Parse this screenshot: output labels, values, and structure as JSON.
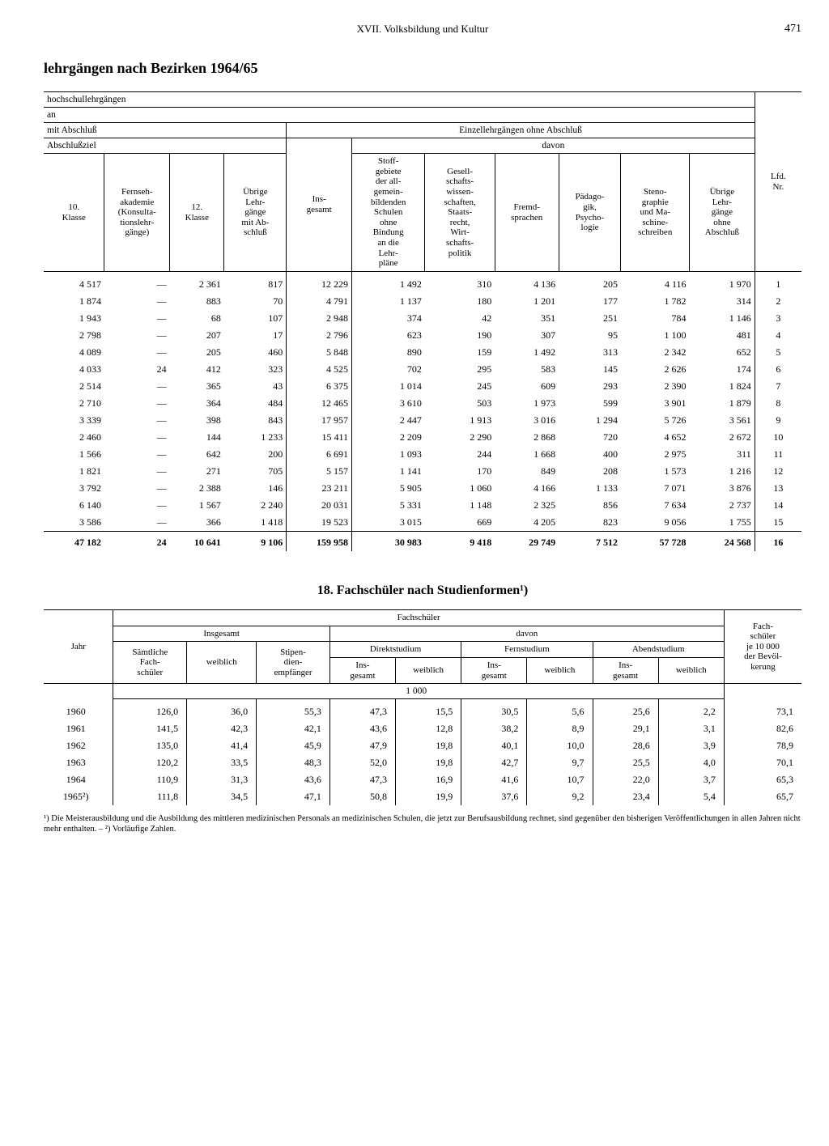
{
  "page": {
    "running_head": "XVII. Volksbildung und Kultur",
    "page_number": "471"
  },
  "table1": {
    "title": "lehrgängen nach Bezirken  1964/65",
    "header": {
      "row1": "hochschullehrgängen",
      "row2": "an",
      "row3_left": "mit Abschluß",
      "row3_right": "Einzellehrgängen ohne Abschluß",
      "row4_left": "Abschlußziel",
      "row4_right": "davon",
      "lfd": "Lfd.\nNr.",
      "c1": "10.\nKlasse",
      "c2": "Fernseh-\nakademie\n(Konsulta-\ntionslehr-\ngänge)",
      "c3": "12.\nKlasse",
      "c4": "Übrige\nLehr-\ngänge\nmit Ab-\nschluß",
      "c5": "Ins-\ngesamt",
      "c6": "Stoff-\ngebiete\nder all-\ngemein-\nbildenden\nSchulen\nohne\nBindung\nan die\nLehr-\npläne",
      "c7": "Gesell-\nschafts-\nwissen-\nschaften,\nStaats-\nrecht,\nWirt-\nschafts-\npolitik",
      "c8": "Fremd-\nsprachen",
      "c9": "Pädago-\ngik,\nPsycho-\nlogie",
      "c10": "Steno-\ngraphie\nund Ma-\nschine-\nschreiben",
      "c11": "Übrige\nLehr-\ngänge\nohne\nAbschluß"
    },
    "rows": [
      [
        "4 517",
        "—",
        "2 361",
        "817",
        "12 229",
        "1 492",
        "310",
        "4 136",
        "205",
        "4 116",
        "1 970",
        "1"
      ],
      [
        "1 874",
        "—",
        "883",
        "70",
        "4 791",
        "1 137",
        "180",
        "1 201",
        "177",
        "1 782",
        "314",
        "2"
      ],
      [
        "1 943",
        "—",
        "68",
        "107",
        "2 948",
        "374",
        "42",
        "351",
        "251",
        "784",
        "1 146",
        "3"
      ],
      [
        "2 798",
        "—",
        "207",
        "17",
        "2 796",
        "623",
        "190",
        "307",
        "95",
        "1 100",
        "481",
        "4"
      ],
      [
        "4 089",
        "—",
        "205",
        "460",
        "5 848",
        "890",
        "159",
        "1 492",
        "313",
        "2 342",
        "652",
        "5"
      ],
      [
        "4 033",
        "24",
        "412",
        "323",
        "4 525",
        "702",
        "295",
        "583",
        "145",
        "2 626",
        "174",
        "6"
      ],
      [
        "2 514",
        "—",
        "365",
        "43",
        "6 375",
        "1 014",
        "245",
        "609",
        "293",
        "2 390",
        "1 824",
        "7"
      ],
      [
        "2 710",
        "—",
        "364",
        "484",
        "12 465",
        "3 610",
        "503",
        "1 973",
        "599",
        "3 901",
        "1 879",
        "8"
      ],
      [
        "3 339",
        "—",
        "398",
        "843",
        "17 957",
        "2 447",
        "1 913",
        "3 016",
        "1 294",
        "5 726",
        "3 561",
        "9"
      ],
      [
        "2 460",
        "—",
        "144",
        "1 233",
        "15 411",
        "2 209",
        "2 290",
        "2 868",
        "720",
        "4 652",
        "2 672",
        "10"
      ],
      [
        "1 566",
        "—",
        "642",
        "200",
        "6 691",
        "1 093",
        "244",
        "1 668",
        "400",
        "2 975",
        "311",
        "11"
      ],
      [
        "1 821",
        "—",
        "271",
        "705",
        "5 157",
        "1 141",
        "170",
        "849",
        "208",
        "1 573",
        "1 216",
        "12"
      ],
      [
        "3 792",
        "—",
        "2 388",
        "146",
        "23 211",
        "5 905",
        "1 060",
        "4 166",
        "1 133",
        "7 071",
        "3 876",
        "13"
      ],
      [
        "6 140",
        "—",
        "1 567",
        "2 240",
        "20 031",
        "5 331",
        "1 148",
        "2 325",
        "856",
        "7 634",
        "2 737",
        "14"
      ],
      [
        "3 586",
        "—",
        "366",
        "1 418",
        "19 523",
        "3 015",
        "669",
        "4 205",
        "823",
        "9 056",
        "1 755",
        "15"
      ]
    ],
    "total": [
      "47 182",
      "24",
      "10 641",
      "9 106",
      "159 958",
      "30 983",
      "9 418",
      "29 749",
      "7 512",
      "57 728",
      "24 568",
      "16"
    ]
  },
  "table2": {
    "title": "18. Fachschüler nach Studienformen¹)",
    "header": {
      "fach": "Fachschüler",
      "jahr": "Jahr",
      "insgesamt": "Insgesamt",
      "davon": "davon",
      "direkt": "Direktstudium",
      "fern": "Fernstudium",
      "abend": "Abendstudium",
      "samtliche": "Sämtliche\nFach-\nschüler",
      "weiblich": "weiblich",
      "stipend": "Stipen-\ndien-\nempfänger",
      "ins": "Ins-\ngesamt",
      "per10k": "Fach-\nschüler\nje 10 000\nder Bevöl-\nkerung",
      "unit": "1 000"
    },
    "rows": [
      [
        "1960",
        "126,0",
        "36,0",
        "55,3",
        "47,3",
        "15,5",
        "30,5",
        "5,6",
        "25,6",
        "2,2",
        "73,1"
      ],
      [
        "1961",
        "141,5",
        "42,3",
        "42,1",
        "43,6",
        "12,8",
        "38,2",
        "8,9",
        "29,1",
        "3,1",
        "82,6"
      ],
      [
        "1962",
        "135,0",
        "41,4",
        "45,9",
        "47,9",
        "19,8",
        "40,1",
        "10,0",
        "28,6",
        "3,9",
        "78,9"
      ],
      [
        "1963",
        "120,2",
        "33,5",
        "48,3",
        "52,0",
        "19,8",
        "42,7",
        "9,7",
        "25,5",
        "4,0",
        "70,1"
      ],
      [
        "1964",
        "110,9",
        "31,3",
        "43,6",
        "47,3",
        "16,9",
        "41,6",
        "10,7",
        "22,0",
        "3,7",
        "65,3"
      ],
      [
        "1965²)",
        "111,8",
        "34,5",
        "47,1",
        "50,8",
        "19,9",
        "37,6",
        "9,2",
        "23,4",
        "5,4",
        "65,7"
      ]
    ],
    "footnote": "¹) Die Meisterausbildung und die Ausbildung des mittleren medizinischen Personals an medizinischen Schulen, die jetzt zur Berufsausbildung rechnet, sind gegenüber den bisherigen Veröffentlichungen in allen Jahren nicht mehr enthalten. – ²) Vorläufige Zahlen."
  }
}
